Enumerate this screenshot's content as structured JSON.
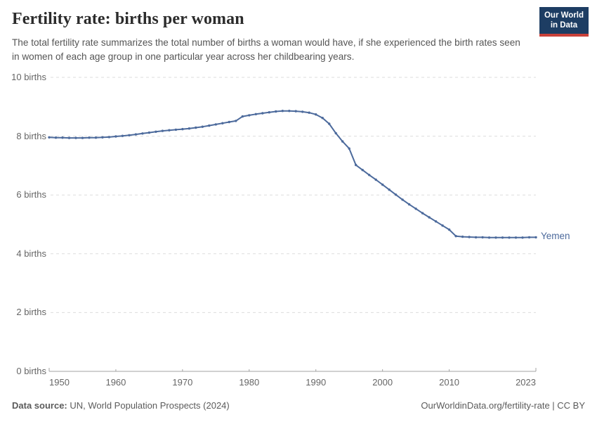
{
  "header": {
    "title": "Fertility rate: births per woman",
    "subtitle": "The total fertility rate summarizes the total number of births a woman would have, if she experienced the birth rates seen in women of each age group in one particular year across her childbearing years."
  },
  "logo": {
    "line1": "Our World",
    "line2": "in Data",
    "bg_color": "#1d3d63",
    "stripe_color": "#c9413a"
  },
  "footer": {
    "source_label": "Data source:",
    "source_text": " UN, World Population Prospects (2024)",
    "link_text": "OurWorldinData.org/fertility-rate | CC BY"
  },
  "chart_data": {
    "type": "line",
    "title": "Fertility rate: births per woman",
    "xlabel": "",
    "ylabel": "births",
    "xlim": [
      1950,
      2023
    ],
    "ylim": [
      0,
      10
    ],
    "grid": "horizontal-dashed",
    "legend_position": "end-of-line",
    "x_ticks": [
      1950,
      1960,
      1970,
      1980,
      1990,
      2000,
      2010,
      2023
    ],
    "y_ticks": [
      {
        "value": 0,
        "label": "0 births"
      },
      {
        "value": 2,
        "label": "2 births"
      },
      {
        "value": 4,
        "label": "4 births"
      },
      {
        "value": 6,
        "label": "6 births"
      },
      {
        "value": 8,
        "label": "8 births"
      },
      {
        "value": 10,
        "label": "10 births"
      }
    ],
    "colors": {
      "line": "#4C6A9C",
      "grid": "#dddddd",
      "axis": "#a3a3a3",
      "tick_text": "#666666"
    },
    "series": [
      {
        "name": "Yemen",
        "color": "#4C6A9C",
        "x": [
          1950,
          1951,
          1952,
          1953,
          1954,
          1955,
          1956,
          1957,
          1958,
          1959,
          1960,
          1961,
          1962,
          1963,
          1964,
          1965,
          1966,
          1967,
          1968,
          1969,
          1970,
          1971,
          1972,
          1973,
          1974,
          1975,
          1976,
          1977,
          1978,
          1979,
          1980,
          1981,
          1982,
          1983,
          1984,
          1985,
          1986,
          1987,
          1988,
          1989,
          1990,
          1991,
          1992,
          1993,
          1994,
          1995,
          1996,
          1997,
          1998,
          1999,
          2000,
          2001,
          2002,
          2003,
          2004,
          2005,
          2006,
          2007,
          2008,
          2009,
          2010,
          2011,
          2012,
          2013,
          2014,
          2015,
          2016,
          2017,
          2018,
          2019,
          2020,
          2021,
          2022,
          2023
        ],
        "values": [
          7.96,
          7.95,
          7.95,
          7.94,
          7.94,
          7.94,
          7.95,
          7.95,
          7.96,
          7.97,
          7.99,
          8.01,
          8.03,
          8.06,
          8.09,
          8.12,
          8.15,
          8.18,
          8.2,
          8.22,
          8.24,
          8.26,
          8.29,
          8.32,
          8.36,
          8.4,
          8.44,
          8.48,
          8.52,
          8.67,
          8.71,
          8.75,
          8.78,
          8.81,
          8.84,
          8.86,
          8.86,
          8.85,
          8.83,
          8.8,
          8.74,
          8.62,
          8.42,
          8.1,
          7.82,
          7.58,
          7.02,
          6.85,
          6.68,
          6.52,
          6.35,
          6.18,
          6.01,
          5.84,
          5.68,
          5.53,
          5.38,
          5.24,
          5.1,
          4.96,
          4.82,
          4.6,
          4.58,
          4.57,
          4.56,
          4.56,
          4.55,
          4.55,
          4.55,
          4.55,
          4.55,
          4.55,
          4.56,
          4.56
        ]
      }
    ]
  }
}
